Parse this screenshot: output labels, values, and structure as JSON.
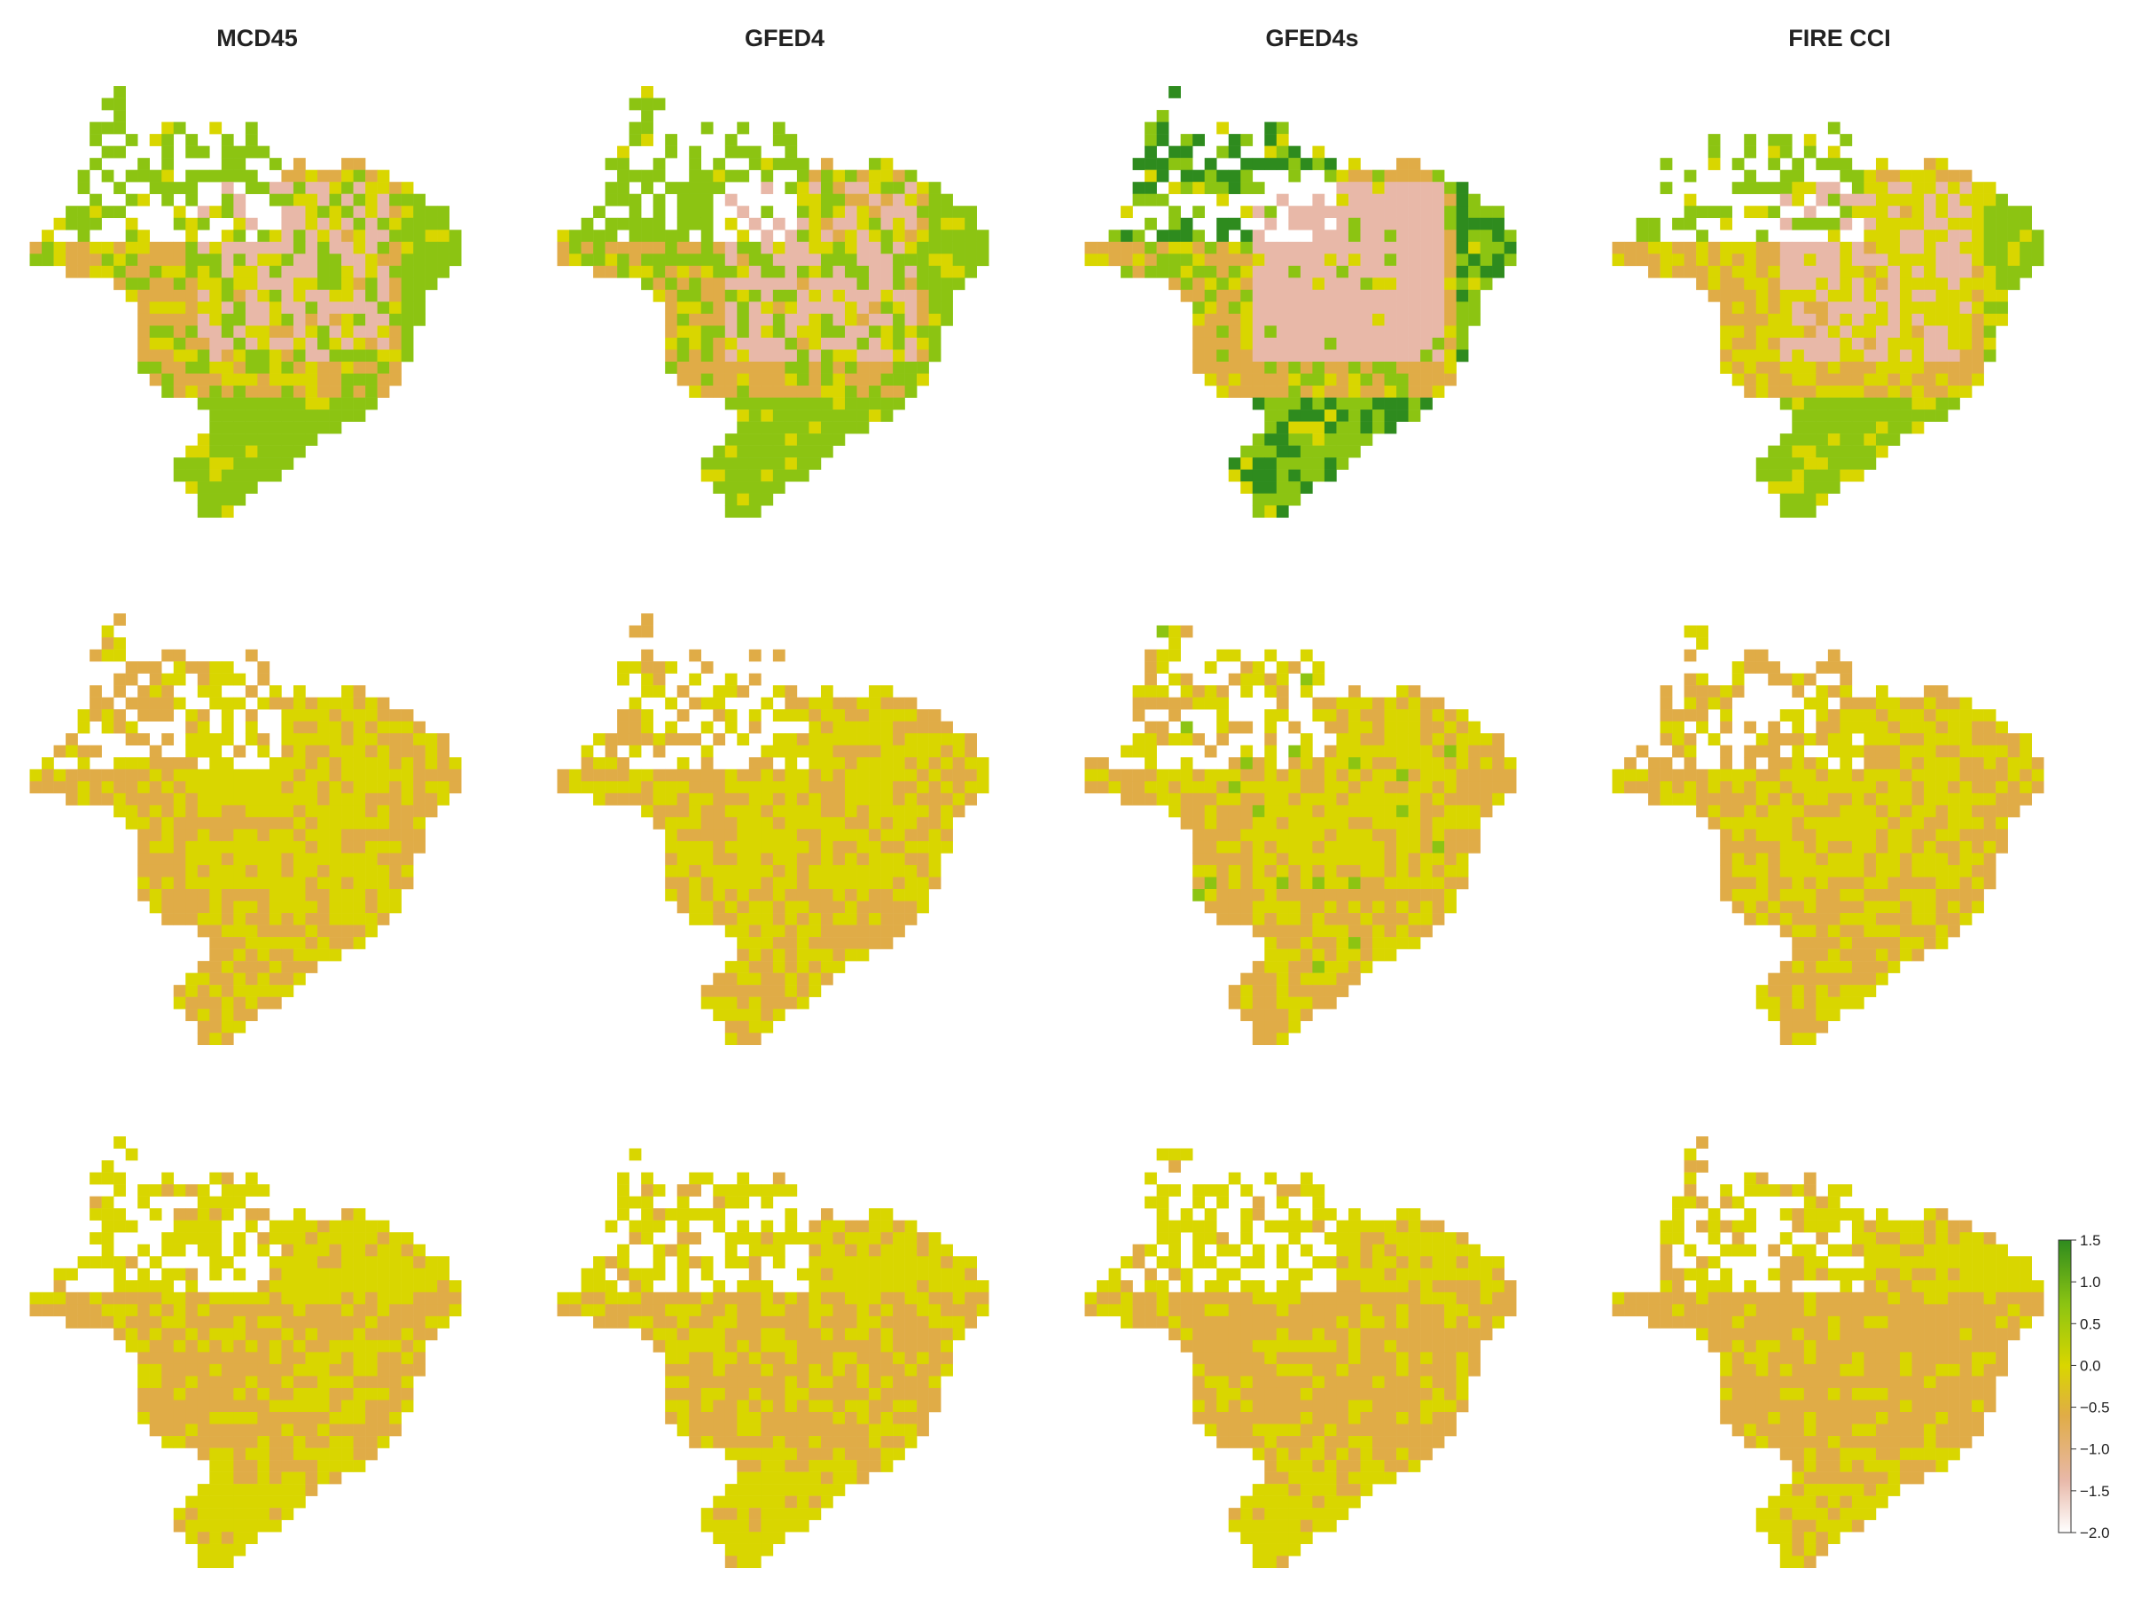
{
  "columns": [
    {
      "title": "MCD45"
    },
    {
      "title": "GFED4"
    },
    {
      "title": "GFED4s"
    },
    {
      "title": "FIRE CCI"
    }
  ],
  "rows": 3,
  "colorbar": {
    "ticks": [
      "1.5",
      "1.0",
      "0.5",
      "0.0",
      "−0.5",
      "−1.0",
      "−1.5",
      "−2.0"
    ],
    "range": [
      -2.0,
      1.5
    ],
    "colors": {
      "high": "#2e8b1e",
      "mid_high": "#8cc412",
      "zero": "#d9d600",
      "mid_low": "#e0ac47",
      "low": "#e8b8a8",
      "min": "#ffffff"
    }
  },
  "panel_fill": [
    [
      {
        "green": 0.3,
        "yellow": 0.2,
        "orange": 0.25,
        "pink": 0.25
      },
      {
        "green": 0.28,
        "yellow": 0.22,
        "orange": 0.25,
        "pink": 0.25
      },
      {
        "green": 0.32,
        "yellow": 0.1,
        "orange": 0.08,
        "pink": 0.5
      },
      {
        "green": 0.1,
        "yellow": 0.55,
        "orange": 0.1,
        "pink": 0.25
      }
    ],
    [
      {
        "green": 0.0,
        "yellow": 0.45,
        "orange": 0.55,
        "pink": 0.0
      },
      {
        "green": 0.0,
        "yellow": 0.45,
        "orange": 0.55,
        "pink": 0.0
      },
      {
        "green": 0.01,
        "yellow": 0.44,
        "orange": 0.55,
        "pink": 0.0
      },
      {
        "green": 0.0,
        "yellow": 0.4,
        "orange": 0.6,
        "pink": 0.0
      }
    ],
    [
      {
        "green": 0.0,
        "yellow": 0.55,
        "orange": 0.45,
        "pink": 0.0
      },
      {
        "green": 0.0,
        "yellow": 0.55,
        "orange": 0.45,
        "pink": 0.0
      },
      {
        "green": 0.0,
        "yellow": 0.45,
        "orange": 0.55,
        "pink": 0.0
      },
      {
        "green": 0.0,
        "yellow": 0.4,
        "orange": 0.6,
        "pink": 0.0
      }
    ]
  ]
}
